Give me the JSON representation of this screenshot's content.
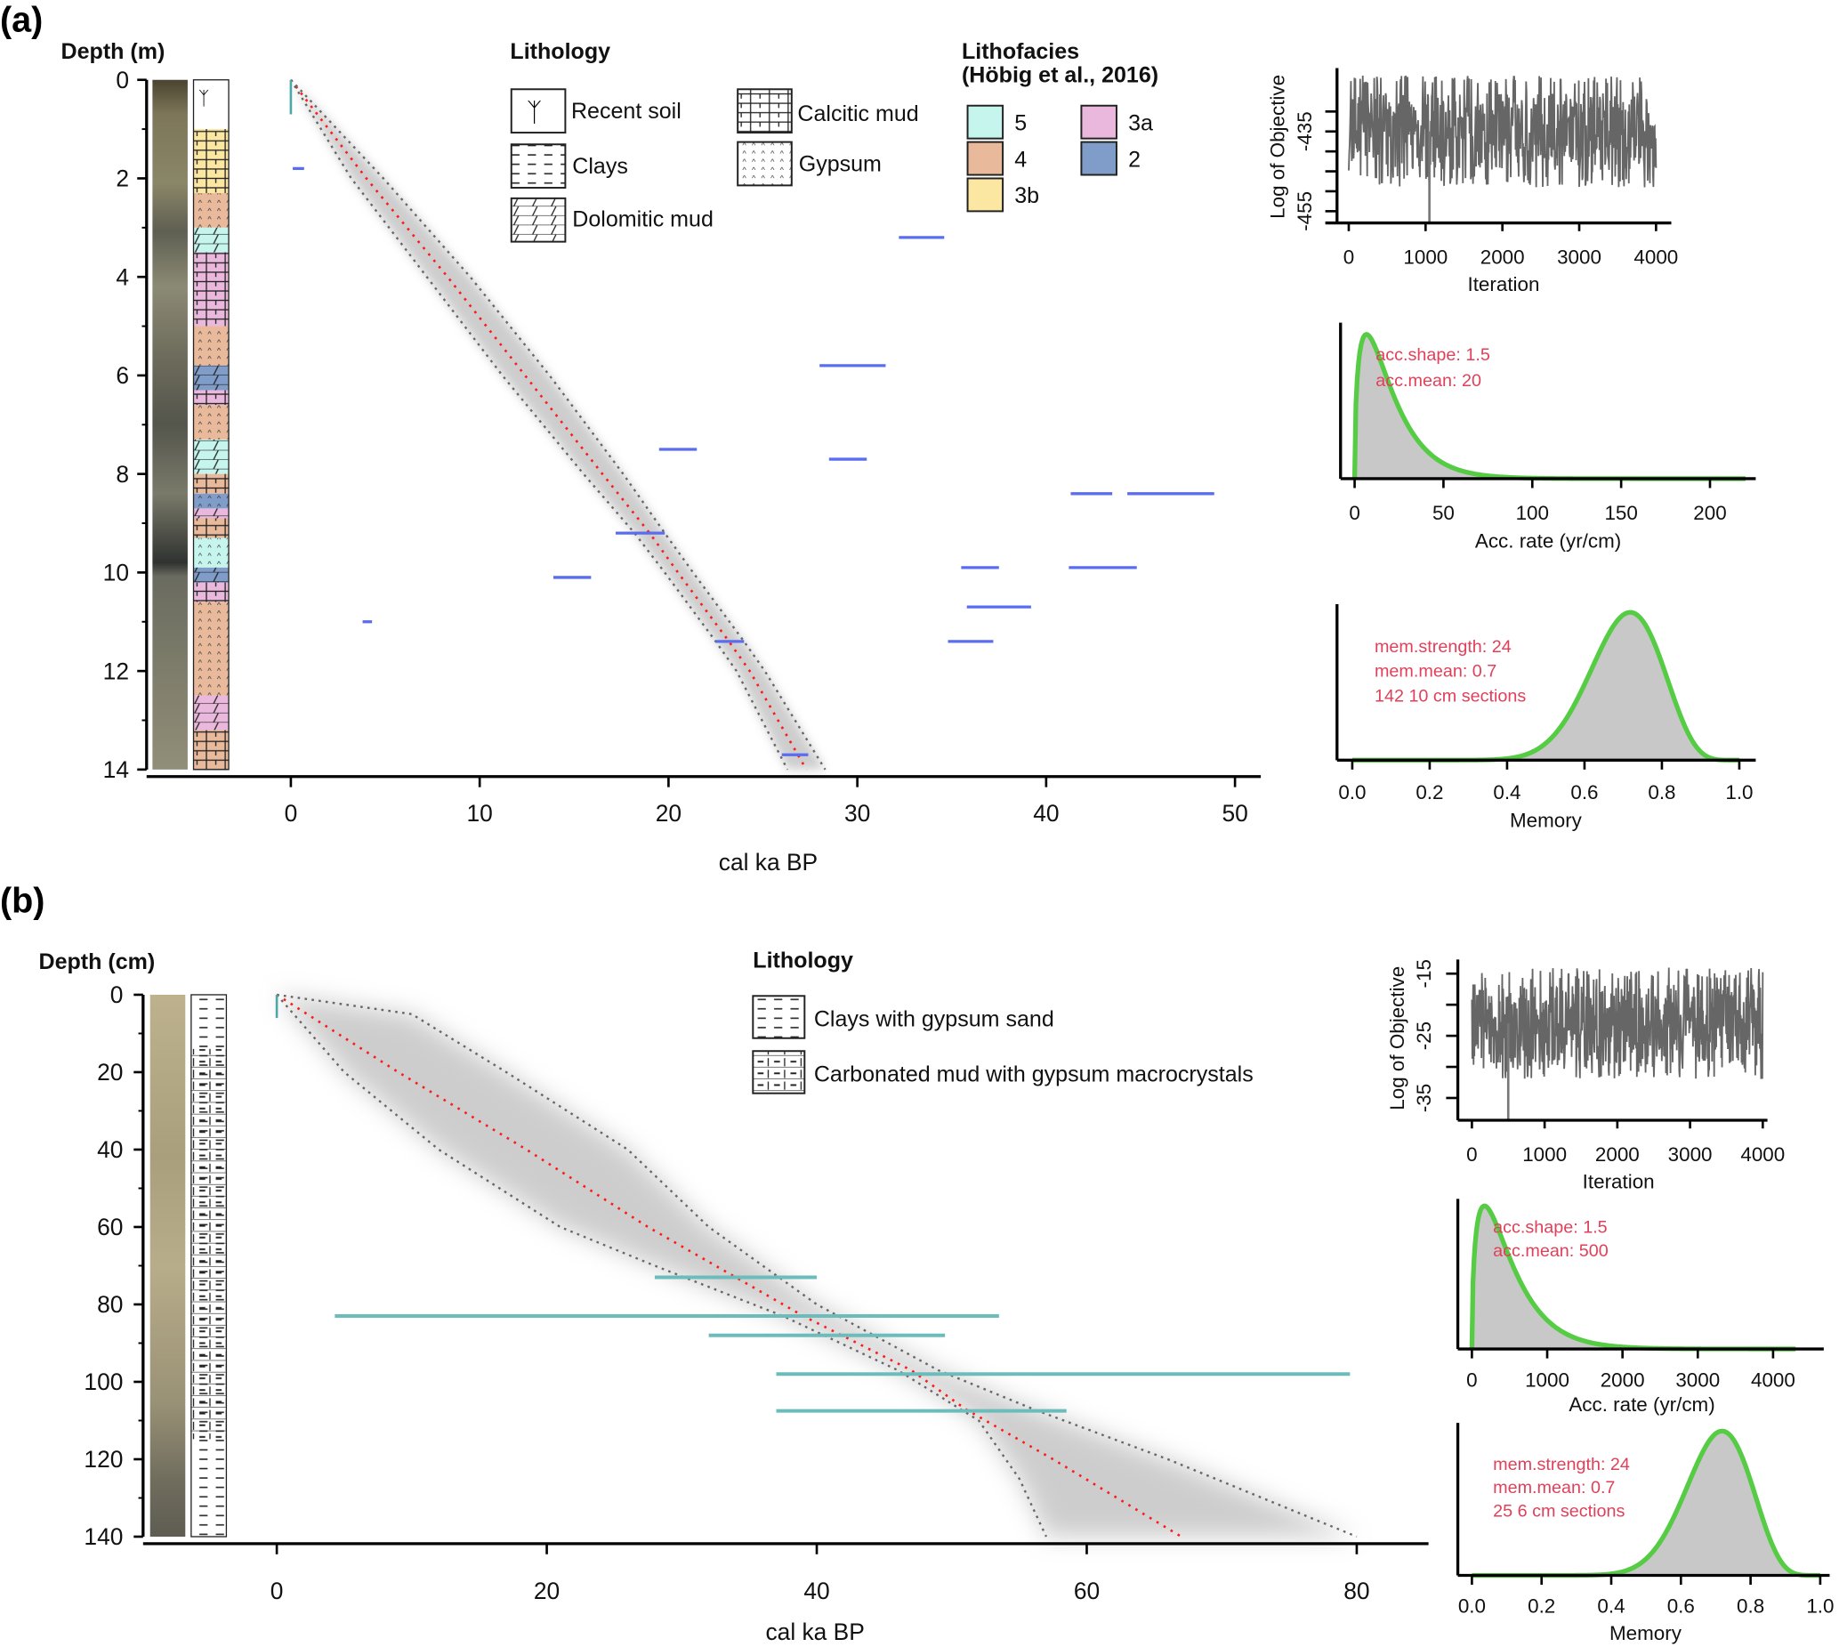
{
  "figure": {
    "panel_a_label": "(a)",
    "panel_b_label": "(b)"
  },
  "chart_data": [
    {
      "panel": "a",
      "type": "line",
      "ylabel": "Depth (m)",
      "xlabel": "cal ka BP",
      "xlim": [
        0,
        50
      ],
      "ylim": [
        0,
        14
      ],
      "xticks": [
        "0",
        "10",
        "20",
        "30",
        "40",
        "50"
      ],
      "xtick_values": [
        0,
        10,
        20,
        30,
        40,
        50
      ],
      "yticks": [
        "0",
        "2",
        "4",
        "6",
        "8",
        "10",
        "12",
        "14"
      ],
      "ytick_values": [
        0,
        2,
        4,
        6,
        8,
        10,
        12,
        14
      ],
      "median": [
        [
          0,
          0
        ],
        [
          2,
          4
        ],
        [
          4,
          8.3
        ],
        [
          6,
          12.4
        ],
        [
          8,
          16.5
        ],
        [
          9.2,
          19
        ],
        [
          10,
          20.5
        ],
        [
          11.4,
          23.2
        ],
        [
          12,
          24.3
        ],
        [
          14,
          27.3
        ]
      ],
      "range_min": [
        [
          0,
          0
        ],
        [
          2,
          3.2
        ],
        [
          4,
          7.2
        ],
        [
          6,
          11.2
        ],
        [
          8,
          15.5
        ],
        [
          9.2,
          18.2
        ],
        [
          10,
          19.8
        ],
        [
          11.4,
          22.5
        ],
        [
          12,
          23.6
        ],
        [
          14,
          26.3
        ]
      ],
      "range_max": [
        [
          0,
          0
        ],
        [
          2,
          4.9
        ],
        [
          4,
          9.5
        ],
        [
          6,
          13.7
        ],
        [
          8,
          17.6
        ],
        [
          9.2,
          19.8
        ],
        [
          10,
          21.3
        ],
        [
          11.4,
          24
        ],
        [
          12,
          25.1
        ],
        [
          14,
          28.3
        ]
      ],
      "dates": [
        {
          "depth": 0.35,
          "min": 0,
          "max": 0,
          "span": 0.7,
          "color": "#4fa8a8"
        },
        {
          "depth": 1.8,
          "min": 0.1,
          "max": 0.7,
          "color": "#5a6cf0"
        },
        {
          "depth": 3.2,
          "min": 32.2,
          "max": 34.6,
          "color": "#5a6cf0"
        },
        {
          "depth": 5.8,
          "min": 28,
          "max": 31.5,
          "color": "#5a6cf0"
        },
        {
          "depth": 7.5,
          "min": 19.5,
          "max": 21.5,
          "color": "#5a6cf0"
        },
        {
          "depth": 7.7,
          "min": 28.5,
          "max": 30.5,
          "color": "#5a6cf0"
        },
        {
          "depth": 8.4,
          "min": 41.3,
          "max": 43.5,
          "color": "#5a6cf0"
        },
        {
          "depth": 8.4,
          "min": 44.3,
          "max": 48.9,
          "color": "#5a6cf0"
        },
        {
          "depth": 9.2,
          "min": 17.2,
          "max": 19.8,
          "color": "#5a6cf0"
        },
        {
          "depth": 9.9,
          "min": 35.5,
          "max": 37.5,
          "color": "#5a6cf0"
        },
        {
          "depth": 9.9,
          "min": 41.2,
          "max": 44.8,
          "color": "#5a6cf0"
        },
        {
          "depth": 10.1,
          "min": 13.9,
          "max": 15.9,
          "color": "#5a6cf0"
        },
        {
          "depth": 10.7,
          "min": 35.8,
          "max": 39.2,
          "color": "#5a6cf0"
        },
        {
          "depth": 11.0,
          "min": 3.8,
          "max": 4.3,
          "color": "#5a6cf0"
        },
        {
          "depth": 11.4,
          "min": 22.5,
          "max": 24,
          "color": "#5a6cf0"
        },
        {
          "depth": 11.4,
          "min": 34.8,
          "max": 37.2,
          "color": "#5a6cf0"
        },
        {
          "depth": 13.7,
          "min": 26,
          "max": 27.4,
          "color": "#5a6cf0"
        }
      ],
      "column": [
        {
          "top": 0,
          "bottom": 1,
          "facies": "soil"
        },
        {
          "top": 1,
          "bottom": 2.3,
          "facies": "3b"
        },
        {
          "top": 2.3,
          "bottom": 3,
          "facies": "4"
        },
        {
          "top": 3,
          "bottom": 3.5,
          "facies": "5"
        },
        {
          "top": 3.5,
          "bottom": 5,
          "facies": "3a"
        },
        {
          "top": 5,
          "bottom": 5.8,
          "facies": "4"
        },
        {
          "top": 5.8,
          "bottom": 6.3,
          "facies": "2"
        },
        {
          "top": 6.3,
          "bottom": 6.6,
          "facies": "3a"
        },
        {
          "top": 6.6,
          "bottom": 7.3,
          "facies": "4"
        },
        {
          "top": 7.3,
          "bottom": 8,
          "facies": "5"
        },
        {
          "top": 8,
          "bottom": 8.4,
          "facies": "4"
        },
        {
          "top": 8.4,
          "bottom": 8.7,
          "facies": "2"
        },
        {
          "top": 8.7,
          "bottom": 8.9,
          "facies": "3a"
        },
        {
          "top": 8.9,
          "bottom": 9.3,
          "facies": "4"
        },
        {
          "top": 9.3,
          "bottom": 9.9,
          "facies": "5"
        },
        {
          "top": 9.9,
          "bottom": 10.2,
          "facies": "2"
        },
        {
          "top": 10.2,
          "bottom": 10.6,
          "facies": "3a"
        },
        {
          "top": 10.6,
          "bottom": 12.5,
          "facies": "4"
        },
        {
          "top": 12.5,
          "bottom": 13.2,
          "facies": "3a"
        },
        {
          "top": 13.2,
          "bottom": 14,
          "facies": "4"
        }
      ],
      "legend_lithology": {
        "title": "Lithology",
        "items": [
          "Recent soil",
          "Clays",
          "Dolomitic mud",
          "Calcitic mud",
          "Gypsum"
        ]
      },
      "legend_lithofacies": {
        "title": "Lithofacies",
        "subtitle": "(Höbig et al., 2016)",
        "items": [
          {
            "label": "5",
            "color": "#c6f5ee"
          },
          {
            "label": "4",
            "color": "#e8b99a"
          },
          {
            "label": "3b",
            "color": "#fbe7a2"
          },
          {
            "label": "3a",
            "color": "#eab8dd"
          },
          {
            "label": "2",
            "color": "#7f9dc8"
          }
        ]
      },
      "trace": {
        "type": "line",
        "ylabel": "Log of Objective",
        "xlabel": "Iteration",
        "iterations": 4000,
        "xticks": [
          "0",
          "1000",
          "2000",
          "3000",
          "4000"
        ],
        "xtick_values": [
          0,
          1000,
          2000,
          3000,
          4000
        ],
        "yticks": [
          "-435",
          "-455"
        ],
        "ytick_values": [
          -435,
          -455
        ],
        "range": [
          -449,
          -421
        ],
        "outlier": {
          "iteration": 1050,
          "value": -457
        }
      },
      "acc": {
        "type": "area",
        "xlabel": "Acc. rate (yr/cm)",
        "xticks": [
          "0",
          "50",
          "100",
          "150",
          "200"
        ],
        "xtick_values": [
          0,
          50,
          100,
          150,
          200
        ],
        "xlim": [
          0,
          220
        ],
        "shape": 1.5,
        "mean": 20,
        "annot": [
          "acc.shape:  1.5",
          "acc.mean:  20"
        ]
      },
      "mem": {
        "type": "area",
        "xlabel": "Memory",
        "xticks": [
          "0.0",
          "0.2",
          "0.4",
          "0.6",
          "0.8",
          "1.0"
        ],
        "xtick_values": [
          0,
          0.2,
          0.4,
          0.6,
          0.8,
          1.0
        ],
        "strength": 24,
        "mean": 0.7,
        "annot": [
          "mem.strength: 24",
          "mem.mean: 0.7",
          "142 10 cm sections"
        ]
      }
    },
    {
      "panel": "b",
      "type": "line",
      "ylabel": "Depth (cm)",
      "xlabel": "cal ka BP",
      "xlim": [
        0,
        80
      ],
      "ylim": [
        0,
        140
      ],
      "xticks": [
        "0",
        "20",
        "40",
        "60",
        "80"
      ],
      "xtick_values": [
        0,
        20,
        40,
        60,
        80
      ],
      "yticks": [
        "0",
        "20",
        "40",
        "60",
        "80",
        "100",
        "120",
        "140"
      ],
      "ytick_values": [
        0,
        20,
        40,
        60,
        80,
        100,
        120,
        140
      ],
      "median": [
        [
          0,
          0
        ],
        [
          20,
          9
        ],
        [
          40,
          18.5
        ],
        [
          60,
          27.5
        ],
        [
          73,
          34
        ],
        [
          83,
          39
        ],
        [
          97,
          47
        ],
        [
          107,
          51
        ],
        [
          120,
          57.5
        ],
        [
          140,
          67
        ]
      ],
      "range_min": [
        [
          0,
          0
        ],
        [
          20,
          5
        ],
        [
          40,
          12
        ],
        [
          60,
          21
        ],
        [
          70,
          28
        ],
        [
          83,
          37.5
        ],
        [
          97,
          46
        ],
        [
          110,
          52
        ],
        [
          125,
          55
        ],
        [
          140,
          57
        ]
      ],
      "range_max": [
        [
          0,
          0
        ],
        [
          5,
          10
        ],
        [
          20,
          17
        ],
        [
          40,
          26
        ],
        [
          60,
          32
        ],
        [
          80,
          40
        ],
        [
          97,
          49
        ],
        [
          107,
          56
        ],
        [
          120,
          66
        ],
        [
          140,
          80
        ]
      ],
      "dates": [
        {
          "depth": 3,
          "min": 0,
          "max": 0,
          "span": 6,
          "color": "#4fa8a8"
        },
        {
          "depth": 73,
          "min": 28,
          "max": 40,
          "color": "#6cbcbc"
        },
        {
          "depth": 83,
          "min": 4.3,
          "max": 53.5,
          "color": "#6cbcbc"
        },
        {
          "depth": 88,
          "min": 32,
          "max": 49.5,
          "color": "#6cbcbc"
        },
        {
          "depth": 98,
          "min": 37,
          "max": 79.5,
          "color": "#6cbcbc"
        },
        {
          "depth": 107.5,
          "min": 37,
          "max": 58.5,
          "color": "#6cbcbc"
        }
      ],
      "legend_lithology": {
        "title": "Lithology",
        "items": [
          "Clays with gypsum sand",
          "Carbonated mud with gypsum macrocrystals"
        ]
      },
      "trace": {
        "type": "line",
        "ylabel": "Log of Objective",
        "xlabel": "Iteration",
        "iterations": 4000,
        "xticks": [
          "0",
          "1000",
          "2000",
          "3000",
          "4000"
        ],
        "xtick_values": [
          0,
          1000,
          2000,
          3000,
          4000
        ],
        "yticks": [
          "-15",
          "-25",
          "-35"
        ],
        "ytick_values": [
          -15,
          -25,
          -35
        ],
        "range": [
          -32,
          -14
        ],
        "outlier": {
          "iteration": 500,
          "value": -37
        }
      },
      "acc": {
        "type": "area",
        "xlabel": "Acc. rate (yr/cm)",
        "xticks": [
          "0",
          "1000",
          "2000",
          "3000",
          "4000"
        ],
        "xtick_values": [
          0,
          1000,
          2000,
          3000,
          4000
        ],
        "xlim": [
          0,
          4300
        ],
        "shape": 1.5,
        "mean": 500,
        "annot": [
          "acc.shape:  1.5",
          "acc.mean:  500"
        ]
      },
      "mem": {
        "type": "area",
        "xlabel": "Memory",
        "xticks": [
          "0.0",
          "0.2",
          "0.4",
          "0.6",
          "0.8",
          "1.0"
        ],
        "xtick_values": [
          0,
          0.2,
          0.4,
          0.6,
          0.8,
          1.0
        ],
        "strength": 24,
        "mean": 0.7,
        "annot": [
          "mem.strength: 24",
          "mem.mean: 0.7",
          "25 6 cm sections"
        ]
      }
    }
  ]
}
